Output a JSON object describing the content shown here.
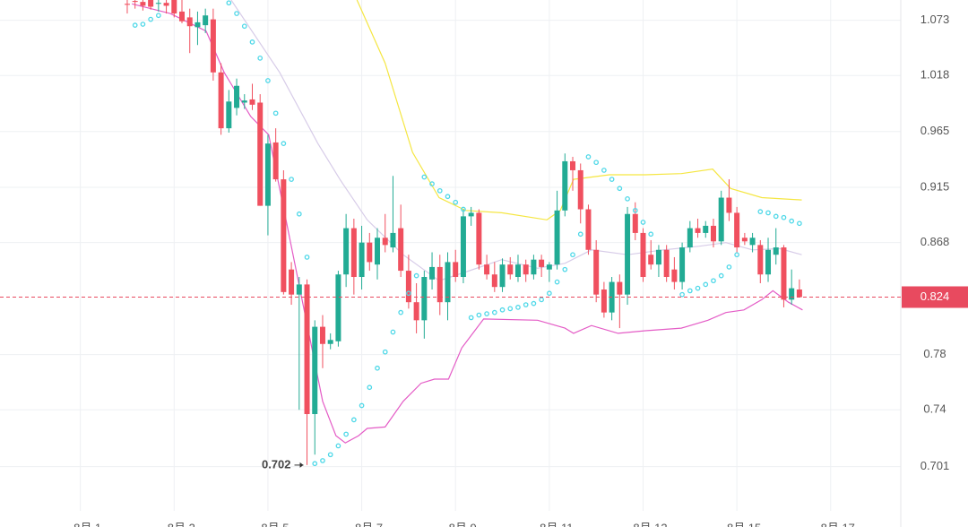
{
  "chart_data": {
    "type": "candlestick",
    "log_scale": true,
    "grid": true,
    "up_color": "#22ab94",
    "down_color": "#f0505f",
    "ylim": [
      0.672,
      1.094
    ],
    "yticks": [
      1.073,
      1.018,
      0.965,
      0.915,
      0.868,
      0.78,
      0.74,
      0.701
    ],
    "xlim": [
      -16.28,
      98.97
    ],
    "xticks": [
      {
        "value": -6,
        "label": "8月 1"
      },
      {
        "value": 6,
        "label": "8月 3"
      },
      {
        "value": 18,
        "label": "8月 5"
      },
      {
        "value": 30,
        "label": "8月 7"
      },
      {
        "value": 42,
        "label": "8月 9"
      },
      {
        "value": 54,
        "label": "8月 11"
      },
      {
        "value": 66,
        "label": "8月 13"
      },
      {
        "value": 78,
        "label": "8月 15"
      },
      {
        "value": 90,
        "label": "8月 17"
      }
    ],
    "open": [
      1.09,
      1.093,
      1.092,
      1.094,
      1.09,
      1.091,
      1.094,
      1.082,
      1.076,
      1.066,
      1.068,
      1.074,
      1.021,
      0.968,
      0.987,
      0.992,
      0.995,
      0.992,
      0.899,
      0.955,
      0.922,
      0.846,
      0.826,
      0.834,
      0.737,
      0.801,
      0.788,
      0.79,
      0.842,
      0.88,
      0.84,
      0.868,
      0.85,
      0.872,
      0.864,
      0.88,
      0.845,
      0.82,
      0.806,
      0.838,
      0.848,
      0.82,
      0.852,
      0.84,
      0.89,
      0.893,
      0.85,
      0.842,
      0.832,
      0.85,
      0.84,
      0.85,
      0.842,
      0.854,
      0.846,
      0.85,
      0.895,
      0.938,
      0.93,
      0.896,
      0.862,
      0.83,
      0.812,
      0.836,
      0.826,
      0.892,
      0.876,
      0.858,
      0.85,
      0.862,
      0.846,
      0.836,
      0.864,
      0.88,
      0.876,
      0.882,
      0.869,
      0.906,
      0.893,
      0.872,
      0.866,
      0.866,
      0.842,
      0.858,
      0.864,
      0.822,
      0.83
    ],
    "high": [
      1.094,
      1.094,
      1.094,
      1.094,
      1.094,
      1.094,
      1.094,
      1.094,
      1.085,
      1.082,
      1.085,
      1.085,
      1.03,
      1.004,
      1.015,
      1.0,
      1.01,
      1.0,
      0.962,
      0.968,
      0.93,
      0.852,
      0.84,
      0.838,
      0.806,
      0.81,
      0.796,
      0.845,
      0.892,
      0.888,
      0.882,
      0.876,
      0.88,
      0.892,
      0.925,
      0.9,
      0.858,
      0.835,
      0.845,
      0.86,
      0.858,
      0.86,
      0.862,
      0.896,
      0.898,
      0.896,
      0.858,
      0.852,
      0.855,
      0.856,
      0.858,
      0.854,
      0.858,
      0.858,
      0.852,
      0.912,
      0.945,
      0.942,
      0.936,
      0.9,
      0.87,
      0.836,
      0.84,
      0.842,
      0.898,
      0.902,
      0.88,
      0.87,
      0.866,
      0.866,
      0.856,
      0.868,
      0.886,
      0.888,
      0.886,
      0.888,
      0.912,
      0.922,
      0.898,
      0.876,
      0.876,
      0.87,
      0.872,
      0.88,
      0.866,
      0.846,
      0.838
    ],
    "low": [
      1.08,
      1.085,
      1.083,
      1.084,
      1.082,
      1.08,
      1.076,
      1.07,
      1.04,
      1.048,
      1.06,
      1.013,
      0.962,
      0.964,
      0.98,
      0.986,
      0.985,
      0.899,
      0.874,
      0.92,
      0.826,
      0.818,
      0.74,
      0.702,
      0.709,
      0.77,
      0.784,
      0.786,
      0.832,
      0.826,
      0.83,
      0.845,
      0.838,
      0.86,
      0.86,
      0.84,
      0.815,
      0.796,
      0.792,
      0.83,
      0.81,
      0.806,
      0.836,
      0.835,
      0.882,
      0.846,
      0.838,
      0.828,
      0.828,
      0.838,
      0.836,
      0.836,
      0.838,
      0.84,
      0.836,
      0.846,
      0.89,
      0.912,
      0.884,
      0.858,
      0.82,
      0.808,
      0.806,
      0.8,
      0.818,
      0.87,
      0.836,
      0.846,
      0.84,
      0.836,
      0.83,
      0.83,
      0.86,
      0.872,
      0.872,
      0.864,
      0.866,
      0.886,
      0.86,
      0.866,
      0.86,
      0.835,
      0.836,
      0.85,
      0.816,
      0.818,
      0.824
    ],
    "close": [
      1.089,
      1.092,
      1.088,
      1.087,
      1.091,
      1.088,
      1.08,
      1.072,
      1.067,
      1.071,
      1.078,
      1.021,
      0.968,
      0.993,
      1.008,
      0.994,
      0.99,
      0.899,
      0.954,
      0.922,
      0.828,
      0.826,
      0.834,
      0.737,
      0.801,
      0.788,
      0.791,
      0.842,
      0.88,
      0.84,
      0.868,
      0.852,
      0.872,
      0.866,
      0.876,
      0.845,
      0.82,
      0.806,
      0.84,
      0.848,
      0.82,
      0.852,
      0.84,
      0.89,
      0.893,
      0.85,
      0.842,
      0.832,
      0.85,
      0.842,
      0.85,
      0.842,
      0.854,
      0.848,
      0.85,
      0.895,
      0.938,
      0.93,
      0.896,
      0.862,
      0.826,
      0.812,
      0.836,
      0.826,
      0.892,
      0.876,
      0.84,
      0.85,
      0.862,
      0.84,
      0.836,
      0.864,
      0.88,
      0.876,
      0.882,
      0.869,
      0.906,
      0.893,
      0.864,
      0.869,
      0.872,
      0.842,
      0.862,
      0.864,
      0.822,
      0.831,
      0.824
    ],
    "lines": [
      {
        "color": "#f5e642",
        "x": [
          29.4,
          33,
          36.5,
          39.9,
          43.3,
          47.9,
          53.7,
          55.4,
          57.1,
          61.7,
          66.3,
          70.9,
          74.9,
          77.2,
          81.2,
          86.3
        ],
        "values": [
          1.094,
          1.03,
          0.946,
          0.906,
          0.895,
          0.893,
          0.887,
          0.895,
          0.922,
          0.926,
          0.926,
          0.927,
          0.931,
          0.914,
          0.906,
          0.904
        ]
      },
      {
        "color": "#d7cce8",
        "x": [
          13.3,
          19.5,
          24.4,
          27.2,
          30.7,
          35.3,
          39.9,
          43.3,
          47.9,
          52.5,
          56,
          59.4,
          64,
          68.6,
          73.2,
          76.6,
          80,
          83.5,
          86.3
        ],
        "values": [
          1.094,
          1.021,
          0.954,
          0.922,
          0.887,
          0.858,
          0.837,
          0.844,
          0.854,
          0.847,
          0.851,
          0.862,
          0.858,
          0.862,
          0.865,
          0.868,
          0.862,
          0.863,
          0.858
        ]
      },
      {
        "color": "#e45cc6",
        "x": [
          0.6,
          5.5,
          10.1,
          12.4,
          15.8,
          18.1,
          20.4,
          22.7,
          25,
          26.7,
          27.9,
          29.6,
          30.7,
          33,
          35.3,
          37.6,
          39.3,
          41.1,
          42.8,
          45.6,
          52.5,
          56,
          57.1,
          59.4,
          62.8,
          66.3,
          70.9,
          74.3,
          76.6,
          78.9,
          81.2,
          82.6,
          84.6,
          86.4
        ],
        "values": [
          1.09,
          1.08,
          1.062,
          1.021,
          0.979,
          0.962,
          0.884,
          0.812,
          0.746,
          0.722,
          0.717,
          0.722,
          0.727,
          0.728,
          0.746,
          0.759,
          0.762,
          0.762,
          0.785,
          0.807,
          0.806,
          0.8,
          0.796,
          0.802,
          0.796,
          0.798,
          0.8,
          0.806,
          0.812,
          0.814,
          0.822,
          0.829,
          0.82,
          0.814
        ]
      }
    ],
    "sar": {
      "color": "#4fd8e8",
      "values": [
        null,
        1.068,
        1.069,
        1.074,
        1.078,
        null,
        null,
        null,
        null,
        null,
        null,
        null,
        null,
        1.091,
        1.08,
        1.067,
        1.051,
        1.035,
        1.013,
        0.982,
        0.954,
        0.922,
        0.892,
        0.856,
        0.703,
        0.705,
        0.709,
        0.715,
        0.723,
        0.733,
        0.743,
        0.756,
        0.77,
        0.782,
        0.797,
        0.812,
        0.827,
        0.841,
        0.924,
        0.918,
        0.912,
        0.907,
        0.902,
        0.896,
        0.808,
        0.81,
        0.811,
        0.812,
        0.814,
        0.815,
        0.816,
        0.818,
        0.819,
        0.822,
        0.827,
        0.836,
        0.846,
        0.858,
        0.875,
        0.942,
        0.937,
        0.93,
        0.922,
        0.914,
        0.905,
        0.895,
        0.885,
        0.875,
        null,
        null,
        null,
        0.826,
        0.829,
        0.831,
        0.834,
        0.837,
        0.841,
        0.848,
        0.858,
        null,
        null,
        0.894,
        0.893,
        0.89,
        0.889,
        0.886,
        0.884
      ]
    },
    "low_marker": {
      "index": 23,
      "value": 0.702
    },
    "current_price": {
      "value": 0.824,
      "color": "#e84a5f"
    }
  }
}
